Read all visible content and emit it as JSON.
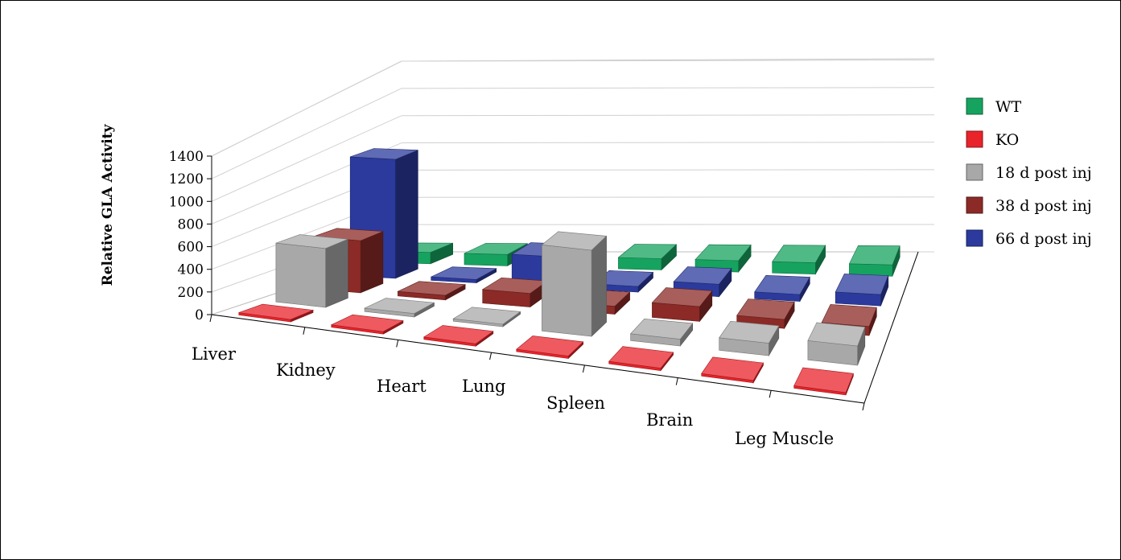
{
  "chart_data": {
    "type": "bar",
    "subtype": "3d-column",
    "title": "",
    "xlabel": "",
    "ylabel": "Relative GLA Activity",
    "ylim": [
      0,
      1400
    ],
    "y_ticks": [
      "0",
      "200",
      "400",
      "600",
      "800",
      "1000",
      "1200",
      "1400"
    ],
    "grid": true,
    "legend_position": "right",
    "categories": [
      "Liver",
      "Kidney",
      "Heart",
      "Lung",
      "Spleen",
      "Brain",
      "Leg Muscle"
    ],
    "series": [
      {
        "name": "KO",
        "color": "#e8232a",
        "values": [
          0,
          0,
          0,
          0,
          0,
          0,
          0
        ]
      },
      {
        "name": "18 d post inj",
        "color": "#a8a8a8",
        "values": [
          520,
          30,
          0,
          760,
          60,
          110,
          170
        ]
      },
      {
        "name": "38 d post inj",
        "color": "#8b2a26",
        "values": [
          460,
          40,
          120,
          70,
          130,
          80,
          80
        ]
      },
      {
        "name": "66 d post inj",
        "color": "#2b3a9c",
        "values": [
          1050,
          30,
          270,
          50,
          110,
          60,
          100
        ]
      },
      {
        "name": "WT",
        "color": "#16a35f",
        "values": [
          100,
          100,
          100,
          100,
          100,
          100,
          100
        ]
      }
    ],
    "legend_order": [
      "WT",
      "KO",
      "18 d post inj",
      "38 d post inj",
      "66 d post inj"
    ]
  }
}
